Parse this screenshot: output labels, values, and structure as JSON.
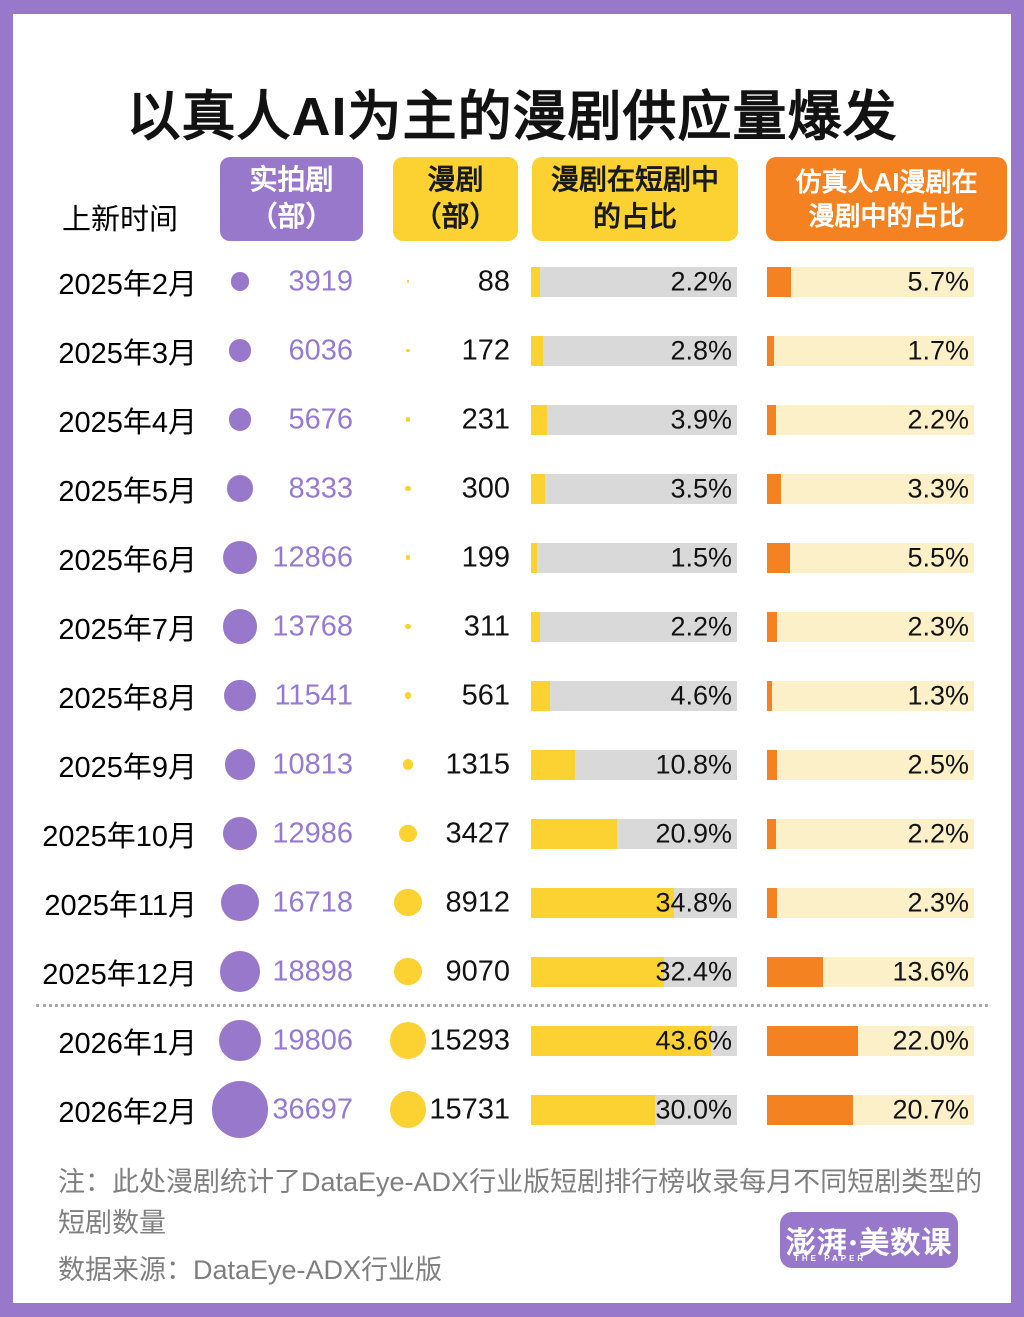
{
  "frame": {
    "border_color": "#9878CB"
  },
  "title": "以真人AI为主的漫剧供应量爆发",
  "header": {
    "time_label": "上新时间",
    "col1": {
      "line1": "实拍剧",
      "line2": "（部）",
      "bg": "#9878CB",
      "fg": "#ffffff"
    },
    "col2": {
      "line1": "漫剧",
      "line2": "（部）",
      "bg": "#FBD232",
      "fg": "#1a1a1a"
    },
    "col3": {
      "line1": "漫剧在短剧中",
      "line2": "的占比",
      "bg": "#FBD232",
      "fg": "#1a1a1a"
    },
    "col4": {
      "line1": "仿真人AI漫剧在",
      "line2": "漫剧中的占比",
      "bg": "#F58220",
      "fg": "#ffffff"
    }
  },
  "chart_data": {
    "type": "table",
    "title": "以真人AI为主的漫剧供应量爆发",
    "categories": [
      "2025年2月",
      "2025年3月",
      "2025年4月",
      "2025年5月",
      "2025年6月",
      "2025年7月",
      "2025年8月",
      "2025年9月",
      "2025年10月",
      "2025年11月",
      "2025年12月",
      "2026年1月",
      "2026年2月"
    ],
    "series": [
      {
        "name": "实拍剧（部）",
        "type": "bubble",
        "color": "#9878CB",
        "values": [
          3919,
          6036,
          5676,
          8333,
          12866,
          13768,
          11541,
          10813,
          12986,
          16718,
          18898,
          19806,
          36697
        ]
      },
      {
        "name": "漫剧（部）",
        "type": "bubble",
        "color": "#FBD232",
        "values": [
          88,
          172,
          231,
          300,
          199,
          311,
          561,
          1315,
          3427,
          8912,
          9070,
          15293,
          15731
        ]
      },
      {
        "name": "漫剧在短剧中的占比",
        "type": "bar",
        "unit": "%",
        "axis_max": 50,
        "color": "#FBD232",
        "track_color": "#D9D9D9",
        "values": [
          2.2,
          2.8,
          3.9,
          3.5,
          1.5,
          2.2,
          4.6,
          10.8,
          20.9,
          34.8,
          32.4,
          43.6,
          30.0
        ]
      },
      {
        "name": "仿真人AI漫剧在漫剧中的占比",
        "type": "bar",
        "unit": "%",
        "axis_max": 50,
        "color": "#F58220",
        "track_color": "#FCF0C9",
        "values": [
          5.7,
          1.7,
          2.2,
          3.3,
          5.5,
          2.3,
          1.3,
          2.5,
          2.2,
          2.3,
          13.6,
          22.0,
          20.7
        ]
      }
    ],
    "legend_position": "none",
    "grid": false,
    "divider_after_category": "2025年12月"
  },
  "footer": {
    "note_line1": "注：此处漫剧统计了DataEye-ADX行业版短剧排行榜收录每月不同短剧类型的",
    "note_line2": "短剧数量",
    "source": "数据来源：DataEye-ADX行业版",
    "text_color": "#7F7F7F"
  },
  "logo": {
    "text": "澎湃·美数课",
    "subtext": "THE PAPER",
    "bg": "#9878CB"
  }
}
